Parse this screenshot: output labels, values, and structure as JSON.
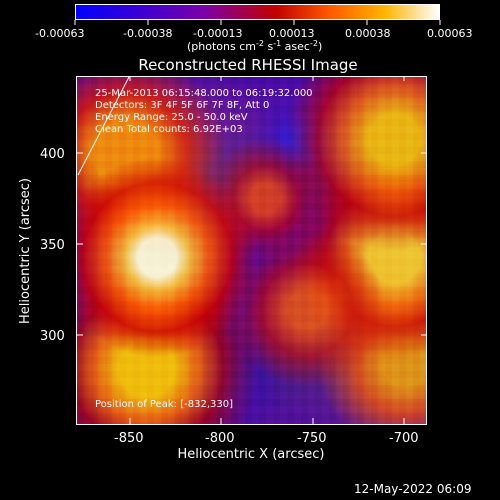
{
  "chart_data": {
    "type": "heatmap",
    "title": "Reconstructed RHESSI Image",
    "xlabel": "Heliocentric X (arcsec)",
    "ylabel": "Heliocentric Y (arcsec)",
    "x_ticks": [
      "-850",
      "-800",
      "-750",
      "-700"
    ],
    "y_ticks": [
      "400",
      "350",
      "300"
    ],
    "xlim": [
      -879,
      -688
    ],
    "ylim": [
      241,
      441
    ],
    "colorbar": {
      "ticks": [
        "-0.00063",
        "-0.00038",
        "-0.00013",
        "0.00013",
        "0.00038",
        "0.00063"
      ],
      "label": "(photons cm",
      "exp1": "-2",
      "mid": " s",
      "exp2": "-1",
      "tail": " asec",
      "exp3": "-2",
      "close": ")"
    },
    "info_lines": [
      "25-Mar-2013 06:15:48.000 to 06:19:32.000",
      "Detectors: 3F 4F 5F 6F 7F 8F, Att 0",
      "Energy Range: 25.0 - 50.0 keV",
      "Clean     Total counts: 6.92E+03"
    ],
    "peak_position": "Position of Peak: [-832,330]",
    "footer_timestamp": "12-May-2022 06:09",
    "colors": {
      "background": "#000000",
      "foreground": "#ffffff",
      "low": "#0000ff",
      "mid": "#7900a8",
      "high": "#ffffff"
    }
  }
}
